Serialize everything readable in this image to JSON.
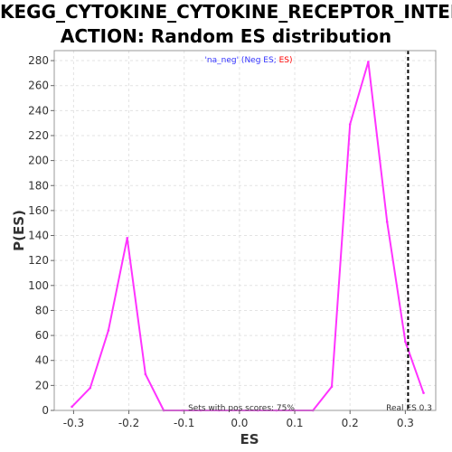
{
  "chart_data": {
    "type": "line",
    "title_line1": "KEGG_CYTOKINE_CYTOKINE_RECEPTOR_INTER",
    "title_line2": "ACTION: Random ES distribution",
    "xlabel": "ES",
    "ylabel": "P(ES)",
    "xlim": [
      -0.335,
      0.355
    ],
    "ylim": [
      0,
      288
    ],
    "xticks": [
      -0.3,
      -0.2,
      -0.1,
      0.0,
      0.1,
      0.2,
      0.3
    ],
    "xtick_labels": [
      "-0.3",
      "-0.2",
      "-0.1",
      "0.0",
      "0.1",
      "0.2",
      "0.3"
    ],
    "yticks": [
      0,
      20,
      40,
      60,
      80,
      100,
      120,
      140,
      160,
      180,
      200,
      220,
      240,
      260,
      280
    ],
    "grid": true,
    "legend": {
      "prefix": "'na_neg' (Neg ES",
      "separator": "; ",
      "suffix": "ES)",
      "prefix_color": "#3333ff",
      "suffix_color": "#ff0000"
    },
    "annotation_pos": "Sets with pos scores: 75%",
    "annotation_real": "Real ES 0.3",
    "real_es": 0.305,
    "series": [
      {
        "color": "#ff33ff",
        "x": [
          -0.303,
          -0.27,
          -0.237,
          -0.203,
          -0.17,
          -0.137,
          -0.103,
          -0.07,
          -0.037,
          0.0,
          0.033,
          0.067,
          0.1,
          0.133,
          0.167,
          0.2,
          0.233,
          0.267,
          0.3,
          0.333
        ],
        "y": [
          3,
          18,
          64,
          138,
          29,
          0,
          0,
          0,
          0,
          0,
          0,
          0,
          0,
          0,
          19,
          229,
          279,
          151,
          55,
          14
        ]
      }
    ]
  }
}
